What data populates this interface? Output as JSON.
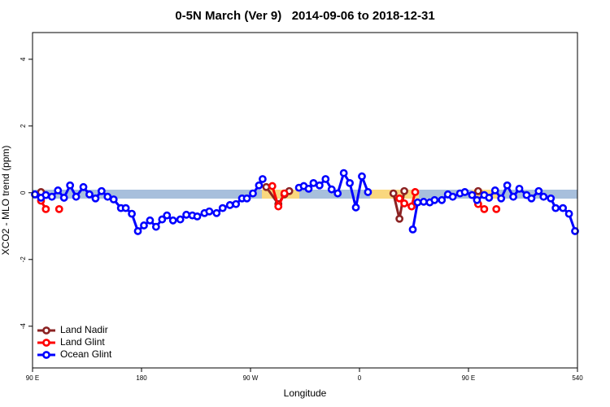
{
  "chart_data": {
    "type": "line",
    "title": "0-5N March (Ver 9)   2014-09-06 to 2018-12-31",
    "x_label": "Longitude",
    "y_label": "XCO2 - MLO trend (ppm)",
    "xlim": [
      90,
      540
    ],
    "ylim": [
      -5.25,
      4.8
    ],
    "xticks": [
      {
        "value": 90,
        "label": "90 E"
      },
      180,
      {
        "value": 270,
        "label": "90 W"
      },
      {
        "value": 360,
        "label": "0"
      },
      {
        "value": 450,
        "label": "90 E"
      },
      540
    ],
    "yticks": [
      -4,
      -2,
      0,
      2,
      4
    ],
    "legend": "bottom-left",
    "series": [
      {
        "name": "Land Nadir",
        "color": "#8b2323",
        "x": [
          97,
          null,
          283,
          293,
          298,
          302,
          null,
          388,
          393,
          397,
          null,
          458
        ],
        "values": [
          0.02,
          null,
          0.17,
          -0.34,
          -0.05,
          0.05,
          null,
          -0.02,
          -0.78,
          0.05,
          null,
          0.05
        ]
      },
      {
        "name": "Land Glint",
        "color": "#ff0000",
        "x": [
          97,
          101,
          null,
          112,
          null,
          288,
          293,
          298,
          null,
          393,
          397,
          403,
          406,
          null,
          458,
          463,
          null,
          473
        ],
        "values": [
          -0.24,
          -0.49,
          null,
          -0.49,
          null,
          0.2,
          -0.41,
          -0.02,
          null,
          -0.17,
          -0.32,
          -0.41,
          0.02,
          null,
          -0.34,
          -0.49,
          null,
          -0.49
        ]
      },
      {
        "name": "Ocean Glint",
        "color": "#0000ff",
        "x": [
          92,
          97,
          101,
          106,
          111,
          116,
          121,
          126,
          132,
          137,
          142,
          147,
          152,
          157,
          163,
          167,
          172,
          177,
          182,
          187,
          192,
          197,
          201,
          206,
          212,
          217,
          222,
          226,
          232,
          236,
          242,
          247,
          253,
          258,
          263,
          267,
          272,
          277,
          280,
          null,
          310,
          314,
          318,
          322,
          327,
          332,
          337,
          342,
          347,
          352,
          357,
          362,
          367,
          null,
          404,
          408,
          413,
          418,
          422,
          428,
          433,
          437,
          443,
          447,
          453,
          457,
          463,
          467,
          472,
          477,
          482,
          487,
          492,
          498,
          502,
          508,
          512,
          518,
          522,
          528,
          533,
          538
        ],
        "values": [
          -0.05,
          -0.15,
          -0.07,
          -0.12,
          0.07,
          -0.15,
          0.22,
          -0.12,
          0.17,
          -0.05,
          -0.17,
          0.05,
          -0.12,
          -0.2,
          -0.46,
          -0.46,
          -0.63,
          -1.15,
          -0.98,
          -0.83,
          -1.02,
          -0.8,
          -0.68,
          -0.83,
          -0.8,
          -0.66,
          -0.68,
          -0.71,
          -0.61,
          -0.56,
          -0.61,
          -0.46,
          -0.37,
          -0.34,
          -0.17,
          -0.17,
          -0.02,
          0.22,
          0.41,
          null,
          0.15,
          0.2,
          0.12,
          0.29,
          0.22,
          0.41,
          0.1,
          -0.02,
          0.59,
          0.29,
          -0.44,
          0.49,
          0.02,
          null,
          -1.1,
          -0.29,
          -0.27,
          -0.29,
          -0.22,
          -0.22,
          -0.05,
          -0.12,
          -0.02,
          0.02,
          -0.07,
          -0.22,
          -0.07,
          -0.15,
          0.07,
          -0.17,
          0.22,
          -0.12,
          0.12,
          -0.07,
          -0.17,
          0.05,
          -0.12,
          -0.17,
          -0.46,
          -0.46,
          -0.63,
          -1.15
        ]
      }
    ]
  }
}
